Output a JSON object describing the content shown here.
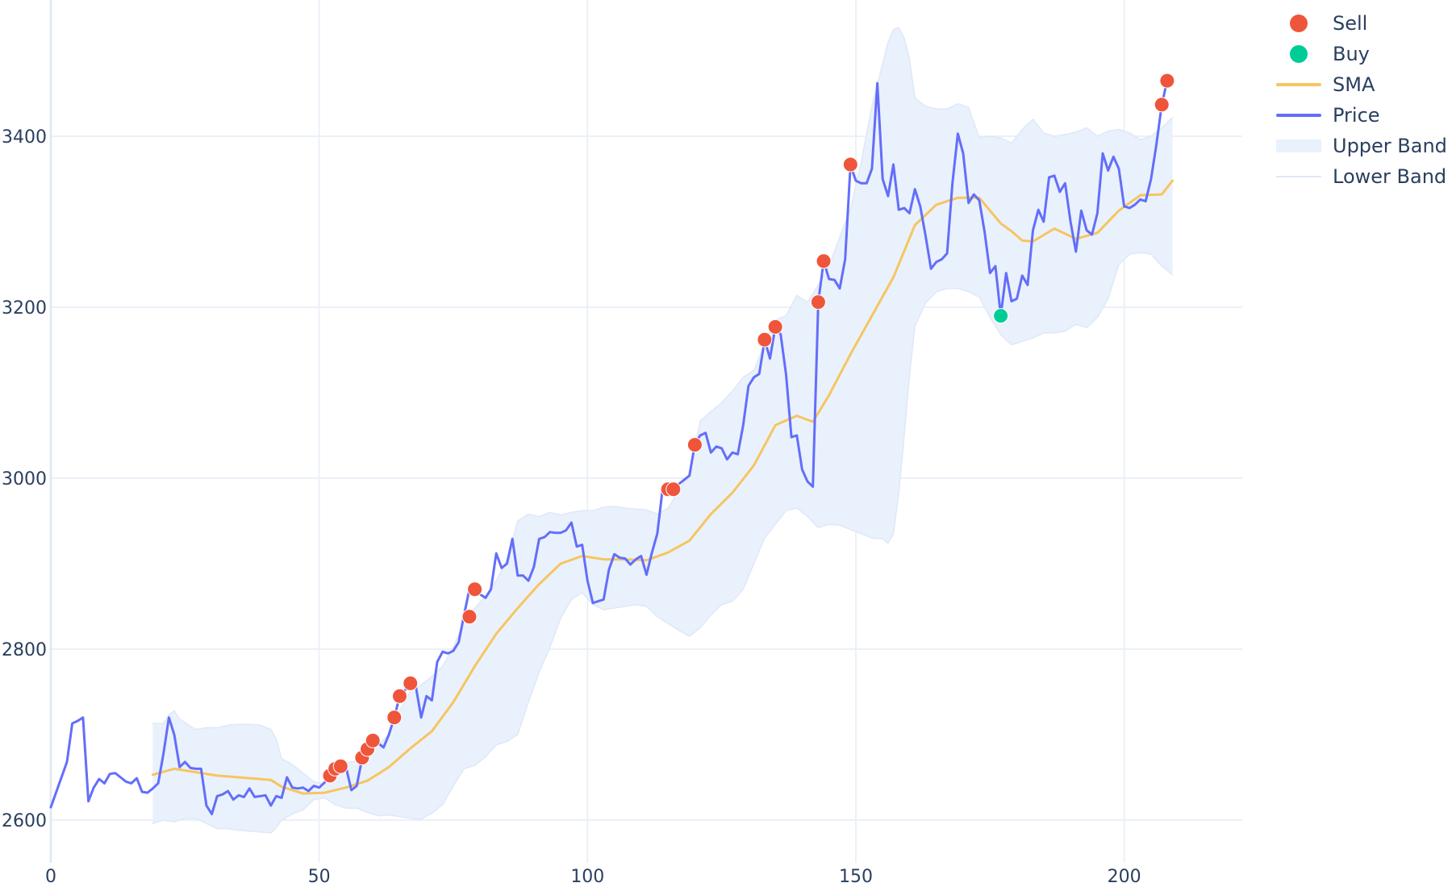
{
  "chart_data": {
    "type": "line",
    "title": "",
    "xlabel": "",
    "ylabel": "",
    "xlim": [
      0,
      222
    ],
    "ylim": [
      2550,
      3550
    ],
    "x_ticks": [
      0,
      50,
      100,
      150,
      200
    ],
    "y_ticks": [
      2600,
      2800,
      3000,
      3200,
      3400
    ],
    "grid": true,
    "legend_position": "top-right",
    "colors": {
      "price": "#636efa",
      "sma": "#f7c55f",
      "band_fill": "#e9f1fc",
      "band_line": "#dfe8f7",
      "sell": "#ef553b",
      "buy": "#00cc96",
      "grid": "#ebf0f8",
      "text": "#2a3f5f"
    },
    "legend": [
      {
        "key": "sell",
        "label": "Sell",
        "kind": "marker"
      },
      {
        "key": "buy",
        "label": "Buy",
        "kind": "marker"
      },
      {
        "key": "sma",
        "label": "SMA",
        "kind": "line"
      },
      {
        "key": "price",
        "label": "Price",
        "kind": "line"
      },
      {
        "key": "upper",
        "label": "Upper Band",
        "kind": "band"
      },
      {
        "key": "lower",
        "label": "Lower Band",
        "kind": "thin"
      }
    ],
    "series": {
      "price": {
        "name": "Price",
        "x": [
          0,
          3,
          4,
          5,
          6,
          7,
          8,
          9,
          10,
          11,
          12,
          13,
          14,
          15,
          16,
          17,
          18,
          19,
          20,
          21,
          22,
          23,
          24,
          25,
          26,
          27,
          28,
          29,
          30,
          31,
          32,
          33,
          34,
          35,
          36,
          37,
          38,
          39,
          40,
          41,
          42,
          43,
          44,
          45,
          46,
          47,
          48,
          49,
          50,
          51,
          52,
          53,
          54,
          55,
          56,
          57,
          58,
          59,
          60,
          61,
          62,
          63,
          64,
          65,
          66,
          67,
          68,
          69,
          70,
          71,
          72,
          73,
          74,
          75,
          76,
          77,
          78,
          79,
          80,
          81,
          82,
          83,
          84,
          85,
          86,
          87,
          88,
          89,
          90,
          91,
          92,
          93,
          94,
          95,
          96,
          97,
          98,
          99,
          100,
          101,
          102,
          103,
          104,
          105,
          106,
          107,
          108,
          109,
          110,
          111,
          112,
          113,
          114,
          115,
          116,
          117,
          118,
          119,
          120,
          121,
          122,
          123,
          124,
          125,
          126,
          127,
          128,
          129,
          130,
          131,
          132,
          133,
          134,
          135,
          136,
          137,
          138,
          139,
          140,
          141,
          142,
          143,
          144,
          145,
          146,
          147,
          148,
          149,
          150,
          151,
          152,
          153,
          154,
          155,
          156,
          157,
          158,
          159,
          160,
          161,
          162,
          163,
          164,
          165,
          166,
          167,
          168,
          169,
          170,
          171,
          172,
          173,
          174,
          175,
          176,
          177,
          178,
          179,
          180,
          181,
          182,
          183,
          184,
          185,
          186,
          187,
          188,
          189,
          190,
          191,
          192,
          193,
          194,
          195,
          196,
          197,
          198,
          199,
          200,
          201,
          202,
          203,
          204,
          205,
          206,
          207,
          208
        ],
        "y": [
          2615,
          2668,
          2713,
          2716,
          2720,
          2622,
          2638,
          2648,
          2643,
          2654,
          2655,
          2650,
          2645,
          2643,
          2649,
          2633,
          2632,
          2637,
          2643,
          2678,
          2720,
          2700,
          2662,
          2668,
          2661,
          2660,
          2660,
          2617,
          2607,
          2628,
          2630,
          2634,
          2624,
          2629,
          2627,
          2637,
          2627,
          2628,
          2629,
          2617,
          2628,
          2626,
          2650,
          2638,
          2637,
          2638,
          2634,
          2640,
          2638,
          2644,
          2652,
          2660,
          2663,
          2662,
          2635,
          2640,
          2672,
          2682,
          2694,
          2690,
          2685,
          2700,
          2720,
          2745,
          2752,
          2760,
          2757,
          2720,
          2745,
          2740,
          2785,
          2797,
          2795,
          2798,
          2808,
          2840,
          2870,
          2865,
          2864,
          2860,
          2870,
          2912,
          2895,
          2900,
          2929,
          2886,
          2886,
          2880,
          2896,
          2929,
          2931,
          2937,
          2936,
          2936,
          2939,
          2948,
          2920,
          2922,
          2880,
          2854,
          2856,
          2858,
          2893,
          2911,
          2907,
          2906,
          2899,
          2905,
          2909,
          2887,
          2913,
          2935,
          2988,
          2990,
          2987,
          2993,
          2998,
          3003,
          3040,
          3050,
          3053,
          3030,
          3037,
          3035,
          3022,
          3030,
          3028,
          3062,
          3108,
          3118,
          3122,
          3162,
          3140,
          3177,
          3168,
          3121,
          3048,
          3050,
          3010,
          2996,
          2990,
          3206,
          3254,
          3233,
          3232,
          3222,
          3256,
          3366,
          3348,
          3345,
          3345,
          3362,
          3462,
          3350,
          3330,
          3367,
          3314,
          3316,
          3310,
          3338,
          3318,
          3283,
          3245,
          3253,
          3256,
          3263,
          3345,
          3403,
          3380,
          3322,
          3332,
          3325,
          3288,
          3240,
          3248,
          3190,
          3240,
          3207,
          3210,
          3237,
          3226,
          3290,
          3314,
          3300,
          3352,
          3354,
          3335,
          3345,
          3300,
          3265,
          3313,
          3290,
          3285,
          3310,
          3380,
          3360,
          3376,
          3362,
          3318,
          3316,
          3320,
          3326,
          3324,
          3350,
          3390,
          3437,
          3465
        ]
      },
      "sma": {
        "name": "SMA",
        "x": [
          19,
          23,
          27,
          31,
          35,
          39,
          41,
          43,
          47,
          51,
          55,
          59,
          63,
          67,
          71,
          75,
          79,
          83,
          87,
          91,
          95,
          99,
          103,
          107,
          111,
          115,
          119,
          123,
          127,
          131,
          135,
          139,
          142,
          145,
          149,
          153,
          157,
          161,
          165,
          169,
          173,
          177,
          179,
          181,
          183,
          187,
          191,
          195,
          199,
          203,
          207,
          209
        ],
        "y": [
          2653,
          2660,
          2656,
          2652,
          2650,
          2648,
          2647,
          2639,
          2631,
          2632,
          2638,
          2646,
          2662,
          2684,
          2704,
          2738,
          2780,
          2818,
          2848,
          2876,
          2900,
          2909,
          2905,
          2905,
          2904,
          2913,
          2927,
          2958,
          2983,
          3015,
          3062,
          3073,
          3066,
          3097,
          3145,
          3190,
          3235,
          3296,
          3320,
          3328,
          3328,
          3298,
          3289,
          3278,
          3277,
          3292,
          3280,
          3287,
          3313,
          3331,
          3332,
          3348
        ]
      },
      "upper_band": {
        "name": "Upper Band",
        "x": [
          19,
          21,
          22,
          23,
          24,
          26,
          27,
          29,
          31,
          33,
          35,
          37,
          39,
          41,
          42,
          43,
          45,
          47,
          49,
          51,
          53,
          55,
          57,
          59,
          61,
          63,
          65,
          67,
          69,
          71,
          73,
          75,
          77,
          79,
          81,
          83,
          85,
          87,
          89,
          91,
          93,
          95,
          97,
          99,
          101,
          103,
          105,
          107,
          109,
          111,
          113,
          115,
          117,
          119,
          121,
          123,
          125,
          127,
          129,
          131,
          133,
          135,
          137,
          139,
          141,
          143,
          145,
          147,
          149,
          151,
          153,
          155,
          156,
          157,
          158,
          159,
          160,
          161,
          163,
          165,
          167,
          169,
          171,
          173,
          175,
          177,
          179,
          181,
          183,
          185,
          187,
          189,
          191,
          193,
          195,
          197,
          199,
          201,
          203,
          205,
          207,
          209
        ],
        "y": [
          2713,
          2713,
          2723,
          2728,
          2718,
          2710,
          2706,
          2708,
          2708,
          2711,
          2712,
          2712,
          2711,
          2706,
          2695,
          2672,
          2665,
          2655,
          2645,
          2642,
          2662,
          2667,
          2669,
          2682,
          2688,
          2700,
          2728,
          2751,
          2758,
          2768,
          2780,
          2802,
          2833,
          2848,
          2862,
          2880,
          2905,
          2950,
          2958,
          2955,
          2960,
          2957,
          2960,
          2962,
          2962,
          2966,
          2967,
          2965,
          2964,
          2963,
          2958,
          2965,
          2985,
          3005,
          3067,
          3078,
          3088,
          3102,
          3118,
          3126,
          3157,
          3185,
          3190,
          3214,
          3206,
          3226,
          3248,
          3282,
          3315,
          3370,
          3435,
          3485,
          3510,
          3525,
          3527,
          3515,
          3490,
          3445,
          3435,
          3432,
          3432,
          3438,
          3434,
          3398,
          3400,
          3398,
          3392,
          3408,
          3420,
          3404,
          3400,
          3402,
          3405,
          3410,
          3400,
          3406,
          3408,
          3404,
          3396,
          3400,
          3410,
          3422
        ]
      },
      "lower_band": {
        "name": "Lower Band",
        "x": [
          19,
          21,
          23,
          25,
          27,
          29,
          31,
          33,
          35,
          37,
          39,
          41,
          42,
          43,
          45,
          47,
          49,
          51,
          53,
          55,
          57,
          59,
          61,
          63,
          65,
          67,
          69,
          71,
          73,
          75,
          77,
          79,
          81,
          83,
          85,
          87,
          89,
          91,
          93,
          95,
          97,
          99,
          101,
          103,
          105,
          107,
          109,
          111,
          113,
          115,
          117,
          119,
          121,
          123,
          125,
          127,
          129,
          131,
          133,
          135,
          137,
          139,
          141,
          143,
          145,
          147,
          149,
          151,
          153,
          155,
          156,
          157,
          158,
          159,
          160,
          161,
          163,
          165,
          167,
          169,
          171,
          173,
          175,
          177,
          179,
          181,
          183,
          185,
          187,
          189,
          191,
          193,
          195,
          197,
          199,
          201,
          203,
          205,
          207,
          209
        ],
        "y": [
          2596,
          2600,
          2598,
          2602,
          2602,
          2596,
          2590,
          2590,
          2588,
          2587,
          2586,
          2585,
          2591,
          2600,
          2607,
          2612,
          2624,
          2626,
          2618,
          2614,
          2614,
          2609,
          2605,
          2606,
          2604,
          2602,
          2601,
          2608,
          2618,
          2640,
          2660,
          2664,
          2674,
          2688,
          2692,
          2700,
          2738,
          2773,
          2802,
          2836,
          2858,
          2866,
          2852,
          2846,
          2848,
          2850,
          2852,
          2850,
          2838,
          2830,
          2822,
          2815,
          2825,
          2840,
          2852,
          2856,
          2870,
          2900,
          2930,
          2946,
          2962,
          2965,
          2955,
          2942,
          2946,
          2945,
          2940,
          2935,
          2930,
          2929,
          2924,
          2935,
          2982,
          3050,
          3120,
          3178,
          3205,
          3218,
          3222,
          3222,
          3218,
          3212,
          3188,
          3168,
          3156,
          3160,
          3164,
          3170,
          3170,
          3172,
          3180,
          3176,
          3188,
          3210,
          3250,
          3262,
          3264,
          3262,
          3248,
          3238
        ]
      }
    },
    "signals": {
      "sell": {
        "name": "Sell",
        "x": [
          52,
          53,
          54,
          58,
          59,
          60,
          64,
          65,
          67,
          78,
          79,
          115,
          116,
          120,
          133,
          135,
          143,
          144,
          149,
          207,
          208
        ],
        "y": [
          2652,
          2660,
          2663,
          2673,
          2683,
          2693,
          2720,
          2745,
          2760,
          2838,
          2870,
          2987,
          2987,
          3039,
          3162,
          3177,
          3206,
          3254,
          3367,
          3437,
          3465
        ]
      },
      "buy": {
        "name": "Buy",
        "x": [
          177
        ],
        "y": [
          3190
        ]
      }
    }
  }
}
